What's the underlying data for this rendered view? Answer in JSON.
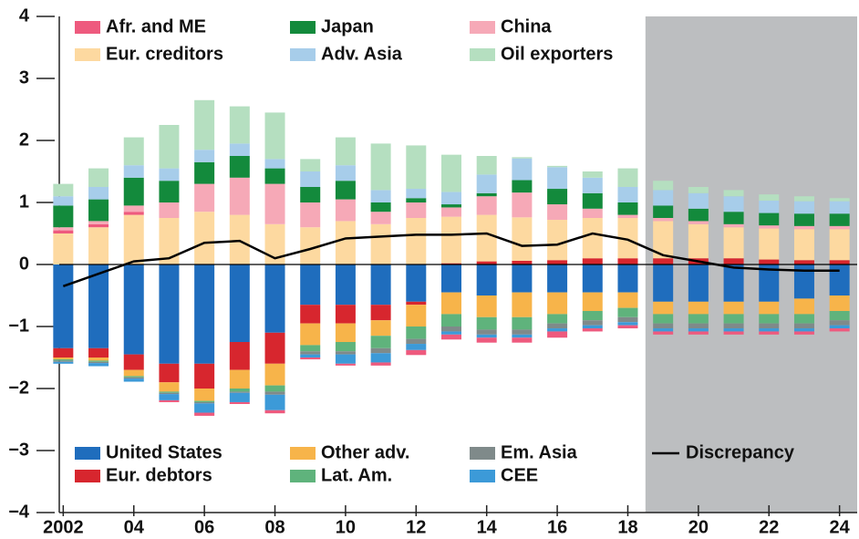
{
  "chart_data": {
    "type": "bar",
    "stacked": true,
    "x": [
      2002,
      2003,
      2004,
      2005,
      2006,
      2007,
      2008,
      2009,
      2010,
      2011,
      2012,
      2013,
      2014,
      2015,
      2016,
      2017,
      2018,
      2019,
      2020,
      2021,
      2022,
      2023,
      2024
    ],
    "xlim": [
      2001.5,
      2024.5
    ],
    "xticks": [
      {
        "value": 2002,
        "label": "2002"
      },
      {
        "value": 2004,
        "label": "04"
      },
      {
        "value": 2006,
        "label": "06"
      },
      {
        "value": 2008,
        "label": "08"
      },
      {
        "value": 2010,
        "label": "10"
      },
      {
        "value": 2012,
        "label": "12"
      },
      {
        "value": 2014,
        "label": "14"
      },
      {
        "value": 2016,
        "label": "16"
      },
      {
        "value": 2018,
        "label": "18"
      },
      {
        "value": 2020,
        "label": "20"
      },
      {
        "value": 2022,
        "label": "22"
      },
      {
        "value": 2024,
        "label": "24"
      }
    ],
    "ylim": [
      -4,
      4
    ],
    "yticks": [
      {
        "value": -4,
        "label": "−4"
      },
      {
        "value": -3,
        "label": "−3"
      },
      {
        "value": -2,
        "label": "−2"
      },
      {
        "value": -1,
        "label": "−1"
      },
      0,
      1,
      2,
      3,
      4
    ],
    "shade_from": 2019,
    "shade_color": "#bcbec0",
    "series": [
      {
        "name": "United States",
        "color": "#1f6dbd",
        "values": [
          -1.35,
          -1.35,
          -1.45,
          -1.6,
          -1.6,
          -1.25,
          -1.1,
          -0.65,
          -0.65,
          -0.65,
          -0.6,
          -0.45,
          -0.5,
          -0.45,
          -0.45,
          -0.45,
          -0.45,
          -0.6,
          -0.6,
          -0.6,
          -0.6,
          -0.55,
          -0.5
        ]
      },
      {
        "name": "Eur. debtors",
        "color": "#d7262e",
        "values": [
          -0.15,
          -0.15,
          -0.25,
          -0.3,
          -0.4,
          -0.45,
          -0.5,
          -0.3,
          -0.3,
          -0.25,
          -0.05,
          0.02,
          0.05,
          0.06,
          0.07,
          0.1,
          0.1,
          0.1,
          0.1,
          0.1,
          0.08,
          0.07,
          0.07
        ]
      },
      {
        "name": "Eur. creditors",
        "color": "#fdd9a0",
        "values": [
          0.5,
          0.6,
          0.8,
          0.75,
          0.85,
          0.8,
          0.65,
          0.6,
          0.7,
          0.65,
          0.75,
          0.75,
          0.75,
          0.7,
          0.65,
          0.65,
          0.65,
          0.6,
          0.55,
          0.5,
          0.5,
          0.5,
          0.5
        ]
      },
      {
        "name": "Other adv.",
        "color": "#f7b44a",
        "values": [
          -0.03,
          -0.05,
          -0.1,
          -0.15,
          -0.2,
          -0.3,
          -0.35,
          -0.35,
          -0.3,
          -0.25,
          -0.35,
          -0.35,
          -0.35,
          -0.4,
          -0.35,
          -0.3,
          -0.25,
          -0.2,
          -0.2,
          -0.2,
          -0.2,
          -0.25,
          -0.25
        ]
      },
      {
        "name": "Lat. Am.",
        "color": "#5fb37c",
        "values": [
          -0.02,
          -0.02,
          -0.02,
          -0.02,
          -0.02,
          -0.05,
          -0.1,
          -0.1,
          -0.15,
          -0.2,
          -0.2,
          -0.2,
          -0.2,
          -0.2,
          -0.15,
          -0.15,
          -0.15,
          -0.15,
          -0.15,
          -0.15,
          -0.15,
          -0.15,
          -0.15
        ]
      },
      {
        "name": "Em. Asia",
        "color": "#7f8a8a",
        "values": [
          -0.02,
          -0.02,
          -0.02,
          -0.02,
          -0.02,
          -0.02,
          -0.05,
          -0.05,
          -0.05,
          -0.08,
          -0.08,
          -0.08,
          -0.08,
          -0.08,
          -0.08,
          -0.08,
          -0.08,
          -0.08,
          -0.08,
          -0.08,
          -0.08,
          -0.08,
          -0.08
        ]
      },
      {
        "name": "CEE",
        "color": "#3c9ad8",
        "values": [
          -0.03,
          -0.05,
          -0.05,
          -0.1,
          -0.15,
          -0.15,
          -0.25,
          -0.05,
          -0.15,
          -0.15,
          -0.1,
          -0.05,
          -0.05,
          -0.05,
          -0.05,
          -0.05,
          -0.05,
          -0.05,
          -0.05,
          -0.05,
          -0.05,
          -0.05,
          -0.05
        ]
      },
      {
        "name": "Afr. and ME",
        "color": "#ee5a7e",
        "values": [
          0.05,
          0.05,
          0.05,
          -0.03,
          -0.05,
          -0.03,
          -0.05,
          -0.03,
          -0.03,
          -0.05,
          -0.08,
          -0.08,
          -0.08,
          -0.08,
          -0.1,
          -0.05,
          -0.05,
          -0.05,
          -0.05,
          -0.05,
          -0.05,
          -0.05,
          -0.05
        ]
      },
      {
        "name": "China",
        "color": "#f6a9b7",
        "values": [
          0.05,
          0.05,
          0.1,
          0.25,
          0.45,
          0.6,
          0.65,
          0.4,
          0.35,
          0.2,
          0.25,
          0.15,
          0.3,
          0.4,
          0.25,
          0.15,
          0.05,
          0.05,
          0.05,
          0.05,
          0.05,
          0.05,
          0.05
        ]
      },
      {
        "name": "Japan",
        "color": "#138a3c",
        "values": [
          0.35,
          0.35,
          0.45,
          0.35,
          0.35,
          0.35,
          0.25,
          0.25,
          0.3,
          0.15,
          0.07,
          0.05,
          0.05,
          0.2,
          0.25,
          0.25,
          0.2,
          0.2,
          0.2,
          0.2,
          0.2,
          0.2,
          0.2
        ]
      },
      {
        "name": "Adv. Asia",
        "color": "#a7cdea",
        "values": [
          0.15,
          0.2,
          0.2,
          0.2,
          0.2,
          0.2,
          0.15,
          0.25,
          0.25,
          0.2,
          0.15,
          0.2,
          0.3,
          0.35,
          0.35,
          0.25,
          0.25,
          0.25,
          0.25,
          0.25,
          0.2,
          0.2,
          0.2
        ]
      },
      {
        "name": "Oil exporters",
        "color": "#b5dfc0",
        "values": [
          0.2,
          0.3,
          0.45,
          0.7,
          0.8,
          0.6,
          0.75,
          0.2,
          0.45,
          0.75,
          0.7,
          0.6,
          0.3,
          0.02,
          0.02,
          0.1,
          0.3,
          0.15,
          0.1,
          0.1,
          0.1,
          0.08,
          0.05
        ]
      }
    ],
    "line": {
      "name": "Discrepancy",
      "color": "#000000",
      "values": [
        -0.35,
        -0.15,
        0.05,
        0.1,
        0.35,
        0.38,
        0.1,
        0.25,
        0.42,
        0.45,
        0.48,
        0.48,
        0.5,
        0.3,
        0.32,
        0.5,
        0.4,
        0.15,
        0.05,
        -0.05,
        -0.08,
        -0.1,
        -0.1
      ]
    }
  }
}
